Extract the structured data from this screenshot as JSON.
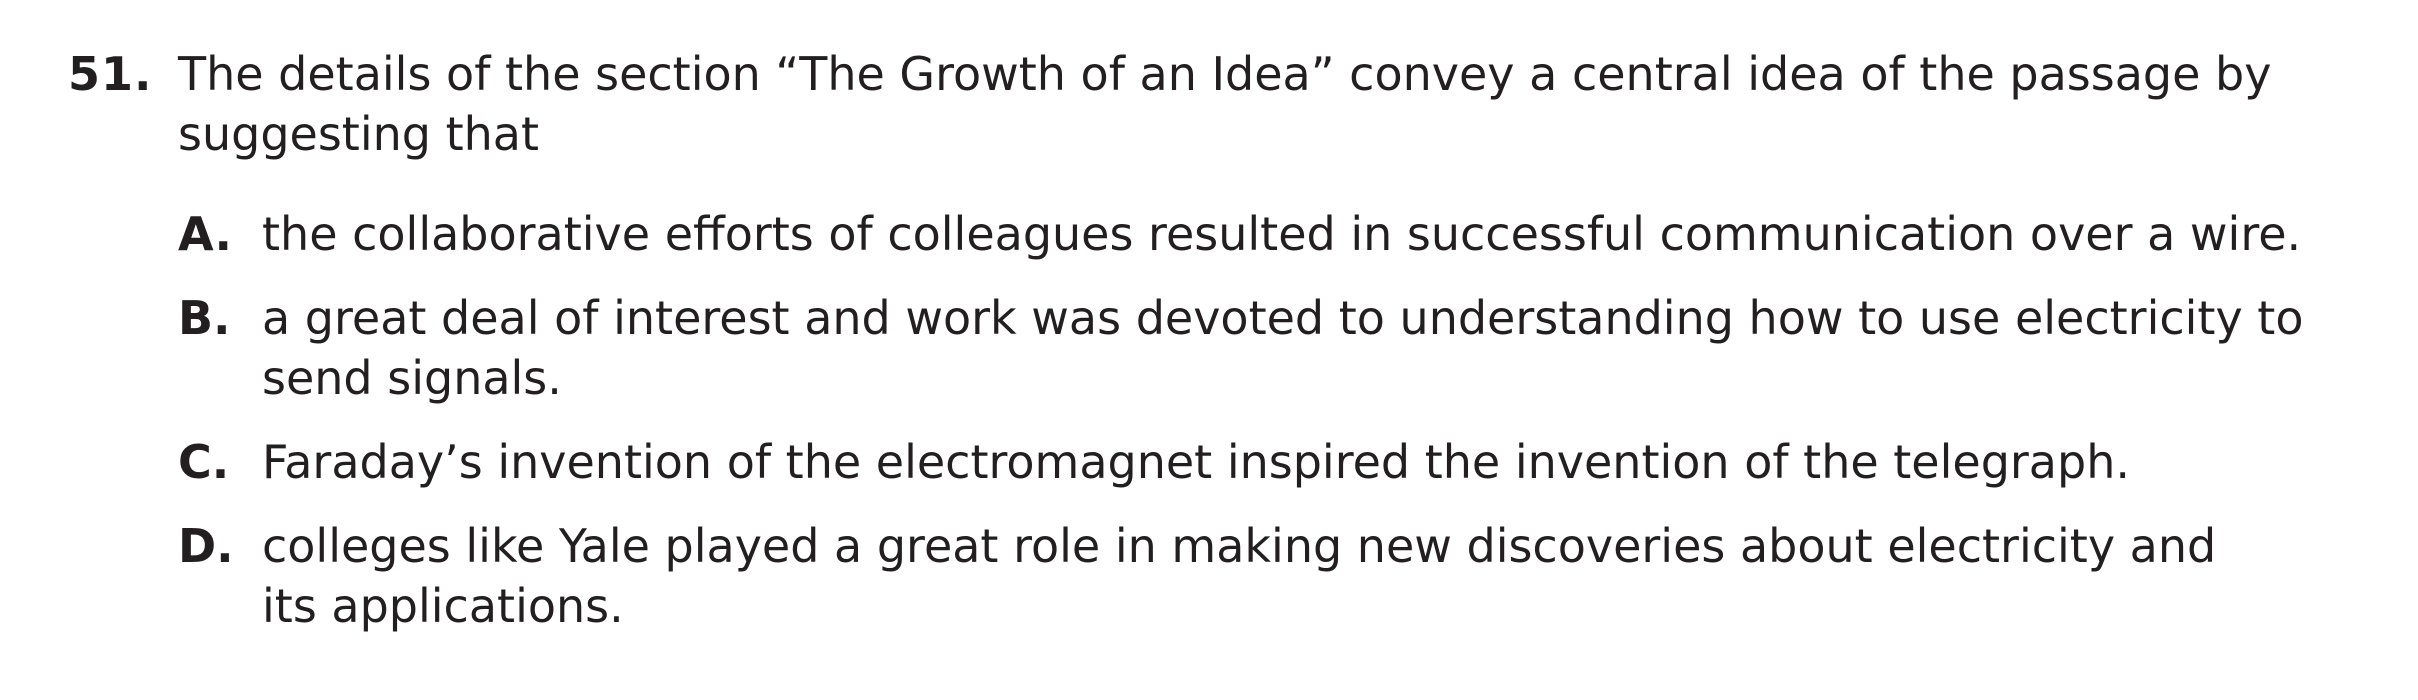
{
  "question": {
    "number": "51.",
    "stem": "The details of the section “The Growth of an Idea” convey a central idea of the passage by suggesting that",
    "choices": [
      {
        "letter": "A.",
        "text": "the collaborative efforts of colleagues resulted in successful communication over a wire."
      },
      {
        "letter": "B.",
        "text": "a great deal of interest and work was devoted to understanding how to use electricity to send signals."
      },
      {
        "letter": "C.",
        "text": "Faraday’s invention of the electromagnet inspired the invention of the telegraph."
      },
      {
        "letter": "D.",
        "text": "colleges like Yale played a great role in making new discoveries about electricity and its applications."
      }
    ]
  }
}
